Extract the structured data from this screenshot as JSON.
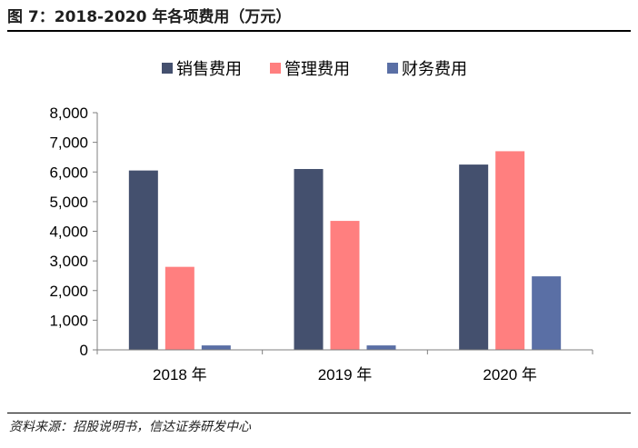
{
  "title": "图 7：2018-2020 年各项费用（万元）",
  "source": "资料来源：招股说明书，信达证券研发中心",
  "chart_data": {
    "type": "bar",
    "title": "图 7：2018-2020 年各项费用（万元）",
    "categories": [
      "2018 年",
      "2019 年",
      "2020 年"
    ],
    "series": [
      {
        "name": "销售费用",
        "color": "#44506e",
        "values": [
          6050,
          6100,
          6250
        ]
      },
      {
        "name": "管理费用",
        "color": "#ff7f7f",
        "values": [
          2800,
          4350,
          6700
        ]
      },
      {
        "name": "财务费用",
        "color": "#5a6fa5",
        "values": [
          150,
          150,
          2480
        ]
      }
    ],
    "ylim": [
      0,
      8000
    ],
    "yticks": [
      "0",
      "1,000",
      "2,000",
      "3,000",
      "4,000",
      "5,000",
      "6,000",
      "7,000",
      "8,000"
    ],
    "legend_position": "top-center",
    "grid": false
  }
}
